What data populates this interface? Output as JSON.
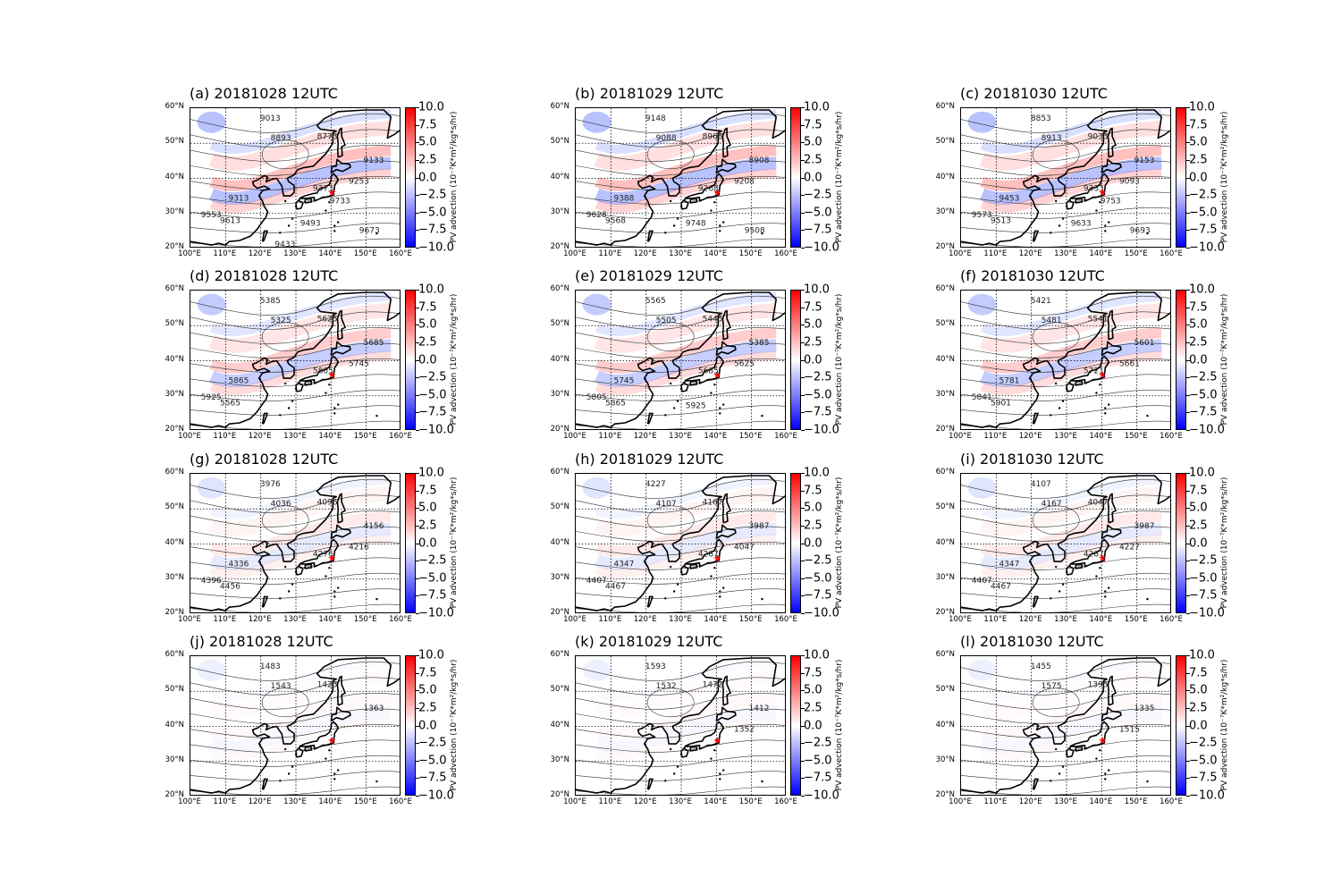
{
  "panels": [
    {
      "title": "(a) 20181028 12UTC",
      "contours": [
        "9013",
        "8893",
        "8773",
        "9133",
        "9253",
        "9373",
        "9313",
        "9553",
        "9613",
        "9493",
        "9673",
        "9733",
        "9433"
      ]
    },
    {
      "title": "(b) 20181029 12UTC",
      "contours": [
        "9148",
        "9088",
        "8968",
        "8908",
        "9208",
        "9268",
        "9388",
        "9628",
        "9568",
        "9748",
        "9508"
      ]
    },
    {
      "title": "(c) 20181030 12UTC",
      "contours": [
        "8853",
        "8913",
        "9033",
        "9153",
        "9093",
        "9333",
        "9453",
        "9573",
        "9513",
        "9633",
        "9693",
        "9753"
      ]
    },
    {
      "title": "(d) 20181028 12UTC",
      "contours": [
        "5385",
        "5325",
        "5625",
        "5685",
        "5745",
        "5805",
        "5865",
        "5925",
        "5565"
      ]
    },
    {
      "title": "(e) 20181029 12UTC",
      "contours": [
        "5565",
        "5505",
        "5445",
        "5385",
        "5625",
        "5685",
        "5745",
        "5805",
        "5865",
        "5925"
      ]
    },
    {
      "title": "(f) 20181030 12UTC",
      "contours": [
        "5421",
        "5481",
        "5541",
        "5601",
        "5661",
        "5721",
        "5781",
        "5841",
        "5901"
      ]
    },
    {
      "title": "(g) 20181028 12UTC",
      "contours": [
        "3976",
        "4036",
        "4096",
        "4156",
        "4216",
        "4276",
        "4336",
        "4396",
        "4456"
      ]
    },
    {
      "title": "(h) 20181029 12UTC",
      "contours": [
        "4227",
        "4107",
        "4167",
        "3987",
        "4047",
        "4287",
        "4347",
        "4407",
        "4467"
      ]
    },
    {
      "title": "(i) 20181030 12UTC",
      "contours": [
        "4107",
        "4167",
        "4047",
        "3987",
        "4227",
        "4287",
        "4347",
        "4407",
        "4467"
      ]
    },
    {
      "title": "(j) 20181028 12UTC",
      "contours": [
        "1483",
        "1543",
        "1423",
        "1363"
      ]
    },
    {
      "title": "(k) 20181029 12UTC",
      "contours": [
        "1593",
        "1532",
        "1472",
        "1412",
        "1352"
      ]
    },
    {
      "title": "(l) 20181030 12UTC",
      "contours": [
        "1455",
        "1575",
        "1395",
        "1335",
        "1515"
      ]
    }
  ],
  "lat_labels": [
    "60°N",
    "50°N",
    "40°N",
    "30°N",
    "20°N"
  ],
  "lon_labels": [
    "100°E",
    "110°E",
    "120°E",
    "130°E",
    "140°E",
    "150°E",
    "160°E"
  ],
  "colorbar": {
    "ticks": [
      "10.0",
      "7.5",
      "5.0",
      "2.5",
      "0.0",
      "−2.5",
      "−5.0",
      "−7.5",
      "−10.0"
    ],
    "label": "PV advection (10⁻⁷K*m²/kg*s/hr)",
    "colors": {
      "max": "#ff0000",
      "mid": "#ffffff",
      "min": "#0000ff"
    }
  },
  "marker": {
    "symbol": "star",
    "lon": 140,
    "lat": 36,
    "color": "#ff0000"
  }
}
